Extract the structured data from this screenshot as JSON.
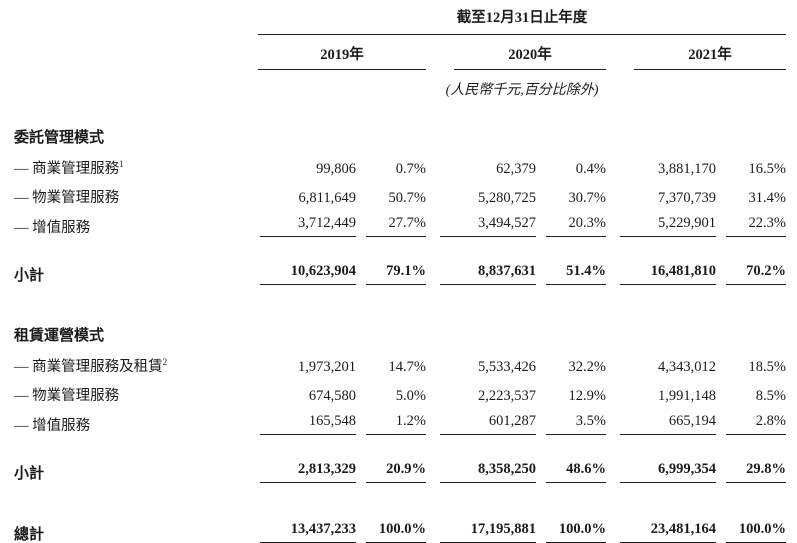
{
  "styles": {
    "text_color": "#1b1b1b",
    "rule_color": "#1f1f1f",
    "background_color": "#ffffff"
  },
  "table": {
    "period_header": "截至12月31日止年度",
    "unit_note": "(人民幣千元,百分比除外)",
    "years": [
      "2019年",
      "2020年",
      "2021年"
    ],
    "column_kinds": [
      "amount",
      "percent",
      "amount",
      "percent",
      "amount",
      "percent"
    ],
    "sections": [
      {
        "title": "委託管理模式",
        "rows": [
          {
            "label": "— 商業管理服務",
            "sup": "1",
            "values": [
              "99,806",
              "0.7%",
              "62,379",
              "0.4%",
              "3,881,170",
              "16.5%"
            ]
          },
          {
            "label": "— 物業管理服務",
            "sup": "",
            "values": [
              "6,811,649",
              "50.7%",
              "5,280,725",
              "30.7%",
              "7,370,739",
              "31.4%"
            ]
          },
          {
            "label": "— 增值服務",
            "sup": "",
            "values": [
              "3,712,449",
              "27.7%",
              "3,494,527",
              "20.3%",
              "5,229,901",
              "22.3%"
            ]
          }
        ],
        "subtotal": {
          "label": "小計",
          "values": [
            "10,623,904",
            "79.1%",
            "8,837,631",
            "51.4%",
            "16,481,810",
            "70.2%"
          ]
        }
      },
      {
        "title": "租賃運營模式",
        "rows": [
          {
            "label": "— 商業管理服務及租賃",
            "sup": "2",
            "values": [
              "1,973,201",
              "14.7%",
              "5,533,426",
              "32.2%",
              "4,343,012",
              "18.5%"
            ]
          },
          {
            "label": "— 物業管理服務",
            "sup": "",
            "values": [
              "674,580",
              "5.0%",
              "2,223,537",
              "12.9%",
              "1,991,148",
              "8.5%"
            ]
          },
          {
            "label": "— 增值服務",
            "sup": "",
            "values": [
              "165,548",
              "1.2%",
              "601,287",
              "3.5%",
              "665,194",
              "2.8%"
            ]
          }
        ],
        "subtotal": {
          "label": "小計",
          "values": [
            "2,813,329",
            "20.9%",
            "8,358,250",
            "48.6%",
            "6,999,354",
            "29.8%"
          ]
        }
      }
    ],
    "total": {
      "label": "總計",
      "values": [
        "13,437,233",
        "100.0%",
        "17,195,881",
        "100.0%",
        "23,481,164",
        "100.0%"
      ]
    }
  }
}
